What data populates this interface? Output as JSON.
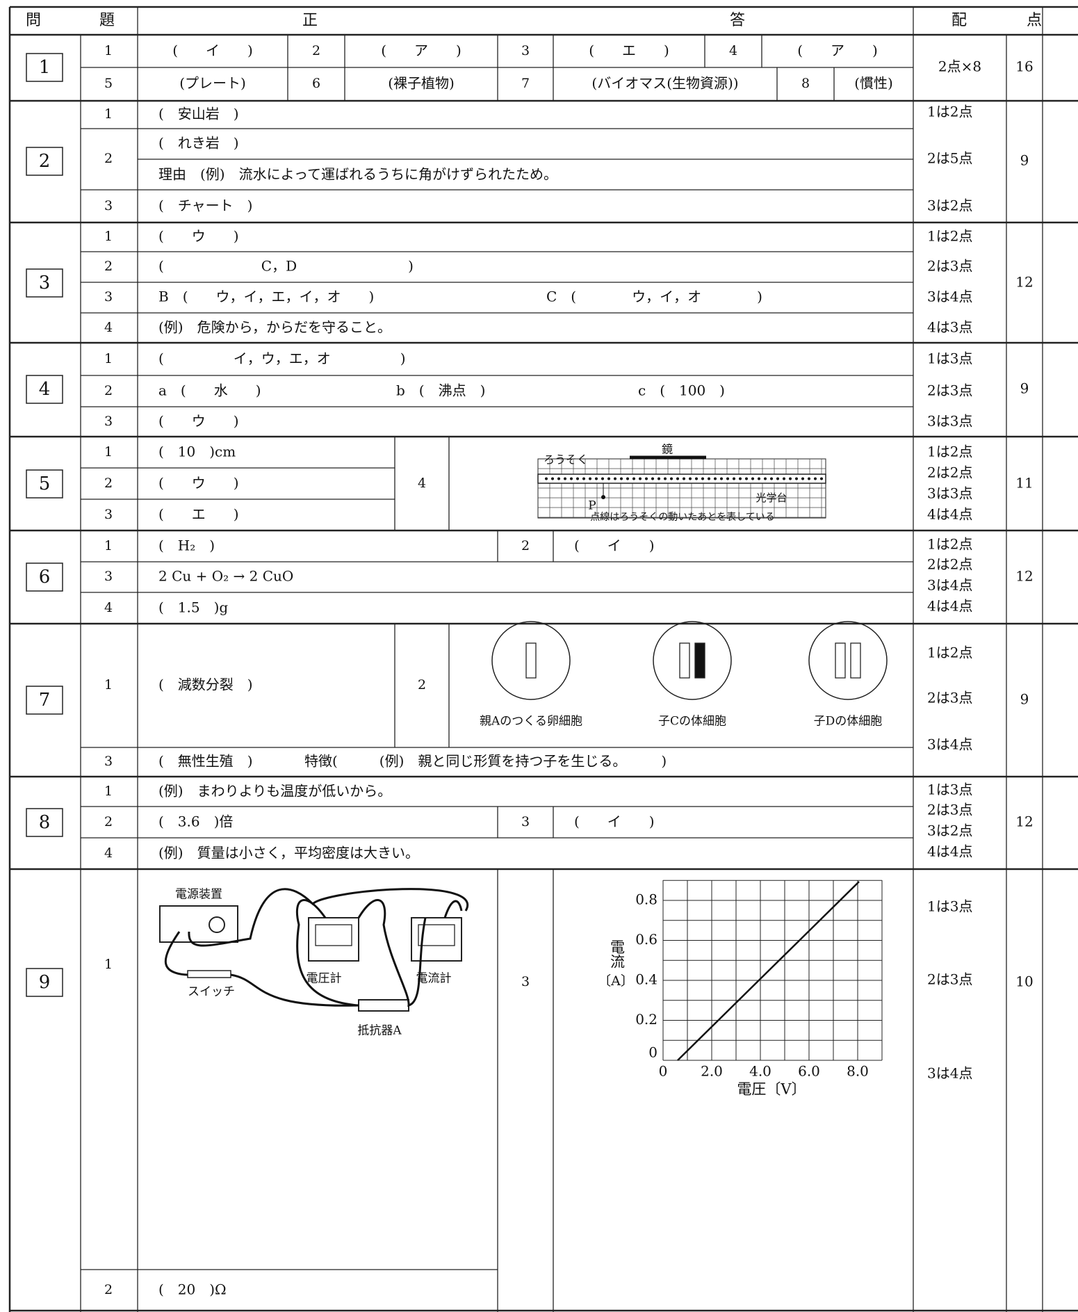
{
  "header": {
    "q": "問",
    "dai": "題",
    "sei": "正",
    "ans": "答",
    "hai": "配",
    "ten": "点"
  },
  "questions": [
    {
      "number": "1",
      "items": [
        {
          "label": "1",
          "texts": [
            "(　　イ　　)"
          ]
        },
        {
          "label": "2",
          "texts": [
            "(　　ア　　)"
          ]
        },
        {
          "label": "3",
          "texts": [
            "(　　エ　　)"
          ]
        },
        {
          "label": "4",
          "texts": [
            "(　　ア　　)"
          ]
        },
        {
          "label": "5",
          "texts": [
            "(プレート)"
          ]
        },
        {
          "label": "6",
          "texts": [
            "(裸子植物)"
          ]
        },
        {
          "label": "7",
          "texts": [
            "(バイオマス(生物資源))"
          ]
        },
        {
          "label": "8",
          "texts": [
            "(慣性)"
          ]
        }
      ],
      "scoring": [
        "2点×8"
      ],
      "total": "16"
    },
    {
      "number": "2",
      "items": [
        {
          "label": "1",
          "texts": [
            "(　安山岩　)"
          ]
        },
        {
          "label": "2",
          "texts": [
            "(　れき岩　)",
            "理由　(例)　流水によって運ばれるうちに角がけずられたため。"
          ]
        },
        {
          "label": "3",
          "texts": [
            "(　チャート　)"
          ]
        }
      ],
      "scoring": [
        "1は2点",
        "2は5点",
        "3は2点"
      ],
      "total": "9"
    },
    {
      "number": "3",
      "items": [
        {
          "label": "1",
          "texts": [
            "(　　ウ　　)"
          ]
        },
        {
          "label": "2",
          "texts": [
            "(　　　　　　　C，D　　　　　　　　)"
          ]
        },
        {
          "label": "3",
          "texts": [
            "B　(　　ウ，イ，エ，イ，オ　　)",
            "C　(　　　　ウ，イ，オ　　　　)"
          ]
        },
        {
          "label": "4",
          "texts": [
            "(例)　危険から，からだを守ること。"
          ]
        }
      ],
      "scoring": [
        "1は2点",
        "2は3点",
        "3は4点",
        "4は3点"
      ],
      "total": "12"
    },
    {
      "number": "4",
      "items": [
        {
          "label": "1",
          "texts": [
            "(　　　　　イ，ウ，エ，オ　　　　　)"
          ]
        },
        {
          "label": "2",
          "texts": [
            "a　(　　水　　)",
            "b　(　沸点　)",
            "c　(　100　)"
          ]
        },
        {
          "label": "3",
          "texts": [
            "(　　ウ　　)"
          ]
        }
      ],
      "scoring": [
        "1は3点",
        "2は3点",
        "3は3点"
      ],
      "total": "9"
    },
    {
      "number": "5",
      "items": [
        {
          "label": "1",
          "texts": [
            "(　10　)cm"
          ]
        },
        {
          "label": "2",
          "texts": [
            "(　　ウ　　)"
          ]
        },
        {
          "label": "3",
          "texts": [
            "(　　エ　　)"
          ]
        },
        {
          "label": "4",
          "texts": [
            "ろうそく",
            "鏡",
            "P",
            "光学台",
            "点線はろうそくの動いたあとを表している"
          ]
        }
      ],
      "scoring": [
        "1は2点",
        "2は2点",
        "3は3点",
        "4は4点"
      ],
      "total": "11"
    },
    {
      "number": "6",
      "items": [
        {
          "label": "1",
          "texts": [
            "(　H₂　)"
          ]
        },
        {
          "label": "2",
          "texts": [
            "(　　イ　　)"
          ]
        },
        {
          "label": "3",
          "texts": [
            "2 Cu + O₂ → 2 CuO"
          ]
        },
        {
          "label": "4",
          "texts": [
            "(　1.5　)g"
          ]
        }
      ],
      "scoring": [
        "1は2点",
        "2は2点",
        "3は4点",
        "4は4点"
      ],
      "total": "12"
    },
    {
      "number": "7",
      "items": [
        {
          "label": "1",
          "texts": [
            "(　減数分裂　)"
          ]
        },
        {
          "label": "2",
          "texts": [
            "親Aのつくる卵細胞",
            "子Cの体細胞",
            "子Dの体細胞"
          ]
        },
        {
          "label": "3",
          "texts": [
            "(　無性生殖　)",
            "特徴(　　　(例)　親と同じ形質を持つ子を生じる。　　　)"
          ]
        }
      ],
      "scoring": [
        "1は2点",
        "2は3点",
        "3は4点"
      ],
      "total": "9"
    },
    {
      "number": "8",
      "items": [
        {
          "label": "1",
          "texts": [
            "(例)　まわりよりも温度が低いから。"
          ]
        },
        {
          "label": "2",
          "texts": [
            "(　3.6　)倍"
          ]
        },
        {
          "label": "3",
          "texts": [
            "(　　イ　　)"
          ]
        },
        {
          "label": "4",
          "texts": [
            "(例)　質量は小さく，平均密度は大きい。"
          ]
        }
      ],
      "scoring": [
        "1は3点",
        "2は3点",
        "3は2点",
        "4は4点"
      ],
      "total": "12"
    },
    {
      "number": "9",
      "items": [
        {
          "label": "1",
          "texts": [
            "電源装置",
            "スイッチ",
            "電圧計",
            "電流計",
            "抵抗器A"
          ]
        },
        {
          "label": "2",
          "texts": [
            "(　20　)Ω"
          ]
        },
        {
          "label": "3",
          "graph": {
            "ylabel": [
              "電流",
              "〔A〕"
            ],
            "xlabel": "電圧〔V〕",
            "yticks": [
              "0.8",
              "0.6",
              "0.4",
              "0.2",
              "0"
            ],
            "xticks": [
              "0",
              "2.0",
              "4.0",
              "6.0",
              "8.0"
            ]
          }
        }
      ],
      "scoring": [
        "1は3点",
        "2は3点",
        "3は4点"
      ],
      "total": "10"
    }
  ]
}
